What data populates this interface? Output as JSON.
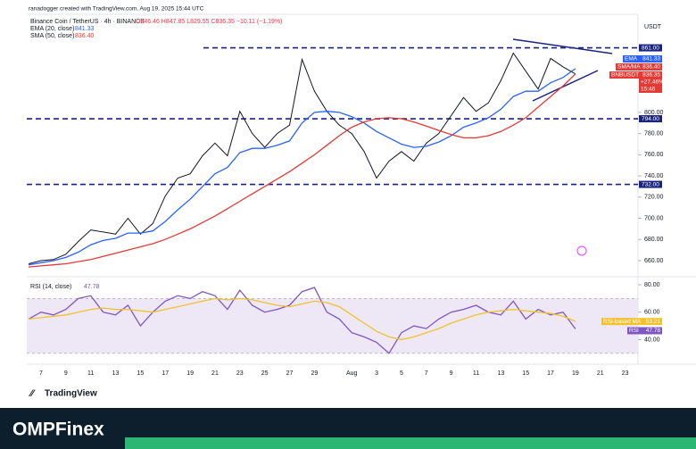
{
  "credit": "ranadogger created with TradingView.com, Aug 19, 2025 15:44 UTC",
  "brand": "TradingView",
  "banner": "OMPFinex",
  "chart_data": [
    {
      "type": "line",
      "title": "Binance Coin / TetherUS · 4h · BINANCE",
      "ohlc": "O846.46 H847.85 L829.55 C836.35 −10.11 (−1.19%)",
      "axis_unit": "USDT",
      "ylim": [
        649,
        891
      ],
      "yticks": [
        {
          "value": 660,
          "label": "660.00"
        },
        {
          "value": 680,
          "label": "680.00"
        },
        {
          "value": 700,
          "label": "700.00"
        },
        {
          "value": 720,
          "label": "720.00"
        },
        {
          "value": 740,
          "label": "740.00"
        },
        {
          "value": 760,
          "label": "760.00"
        },
        {
          "value": 780,
          "label": "780.00"
        },
        {
          "value": 800,
          "label": "800.00"
        }
      ],
      "levels": [
        {
          "value": 861,
          "label": "861.00"
        },
        {
          "value": 794,
          "label": "794.00"
        },
        {
          "value": 732,
          "label": "732.00"
        }
      ],
      "level_color": "#1a237e",
      "series": [
        {
          "name": "BNBUSDT",
          "color": "#131722",
          "last": "836.35",
          "change": "+27.46%",
          "countdown": "15:46",
          "values": [
            657,
            660,
            661,
            666,
            678,
            689,
            687,
            685,
            700,
            685,
            695,
            721,
            738,
            742,
            759,
            771,
            759,
            801,
            780,
            767,
            780,
            788,
            850,
            820,
            801,
            788,
            780,
            763,
            738,
            754,
            763,
            754,
            771,
            780,
            797,
            814,
            801,
            809,
            830,
            856,
            839,
            822,
            851,
            843,
            836.35,
            null,
            null,
            null,
            null
          ]
        },
        {
          "name": "EMA (20, close)",
          "tag": "EMA",
          "color": "#2962ff",
          "last": "841.33",
          "values": [
            656,
            658,
            660,
            663,
            668,
            675,
            679,
            681,
            686,
            686,
            688,
            697,
            708,
            718,
            730,
            742,
            748,
            762,
            766,
            766,
            769,
            773,
            790,
            800,
            801,
            800,
            796,
            790,
            782,
            776,
            770,
            767,
            768,
            772,
            778,
            786,
            790,
            795,
            803,
            815,
            820,
            820,
            828,
            833,
            841.33,
            null,
            null,
            null,
            null
          ]
        },
        {
          "name": "SMA (50, close)",
          "tag": "SMA/MA",
          "color": "#e53935",
          "last": "836.40",
          "values": [
            654,
            655,
            656,
            657,
            659,
            661,
            664,
            667,
            670,
            673,
            676,
            680,
            685,
            690,
            696,
            702,
            709,
            716,
            723,
            730,
            737,
            744,
            752,
            760,
            769,
            778,
            786,
            791,
            794,
            795,
            794,
            791,
            787,
            783,
            779,
            776,
            776,
            778,
            782,
            788,
            795,
            805,
            815,
            825,
            836.4,
            null,
            null,
            null,
            null
          ]
        }
      ]
    },
    {
      "type": "line",
      "title": "RSI (14, close)",
      "categories": [
        null,
        "7",
        null,
        "9",
        null,
        "11",
        null,
        "13",
        null,
        "15",
        null,
        "17",
        null,
        "19",
        null,
        "21",
        null,
        "23",
        null,
        "25",
        null,
        "27",
        null,
        "29",
        null,
        null,
        "Aug",
        null,
        "3",
        null,
        "5",
        null,
        "7",
        null,
        "9",
        null,
        "11",
        null,
        "13",
        null,
        "15",
        null,
        "17",
        null,
        "19",
        null,
        "21",
        null,
        "23"
      ],
      "ylim": [
        24,
        82.6
      ],
      "yticks": [
        {
          "value": 40,
          "label": "40.00"
        },
        {
          "value": 60,
          "label": "60.00"
        },
        {
          "value": 80,
          "label": "80.00"
        }
      ],
      "band": [
        30,
        70
      ],
      "band_color": "#ede7f6",
      "series": [
        {
          "name": "RSI",
          "color": "#7e57c2",
          "last": "47.78",
          "values": [
            55,
            60,
            58,
            62,
            70,
            72,
            60,
            58,
            65,
            50,
            60,
            68,
            72,
            70,
            75,
            72,
            62,
            76,
            65,
            60,
            62,
            65,
            75,
            78,
            60,
            55,
            45,
            42,
            38,
            30,
            45,
            50,
            48,
            55,
            60,
            62,
            65,
            60,
            58,
            68,
            55,
            62,
            58,
            60,
            47.78,
            null,
            null,
            null,
            null
          ]
        },
        {
          "name": "RSI-based MA",
          "color": "#f2c12e",
          "last": "53.21",
          "values": [
            55,
            56,
            57,
            58,
            60,
            62,
            63,
            62,
            62,
            61,
            60,
            62,
            64,
            66,
            68,
            70,
            69,
            70,
            69,
            67,
            65,
            64,
            66,
            68,
            67,
            64,
            58,
            52,
            46,
            42,
            40,
            42,
            45,
            48,
            52,
            55,
            58,
            60,
            61,
            62,
            61,
            60,
            59,
            57,
            53.21,
            null,
            null,
            null,
            null
          ]
        }
      ]
    }
  ]
}
